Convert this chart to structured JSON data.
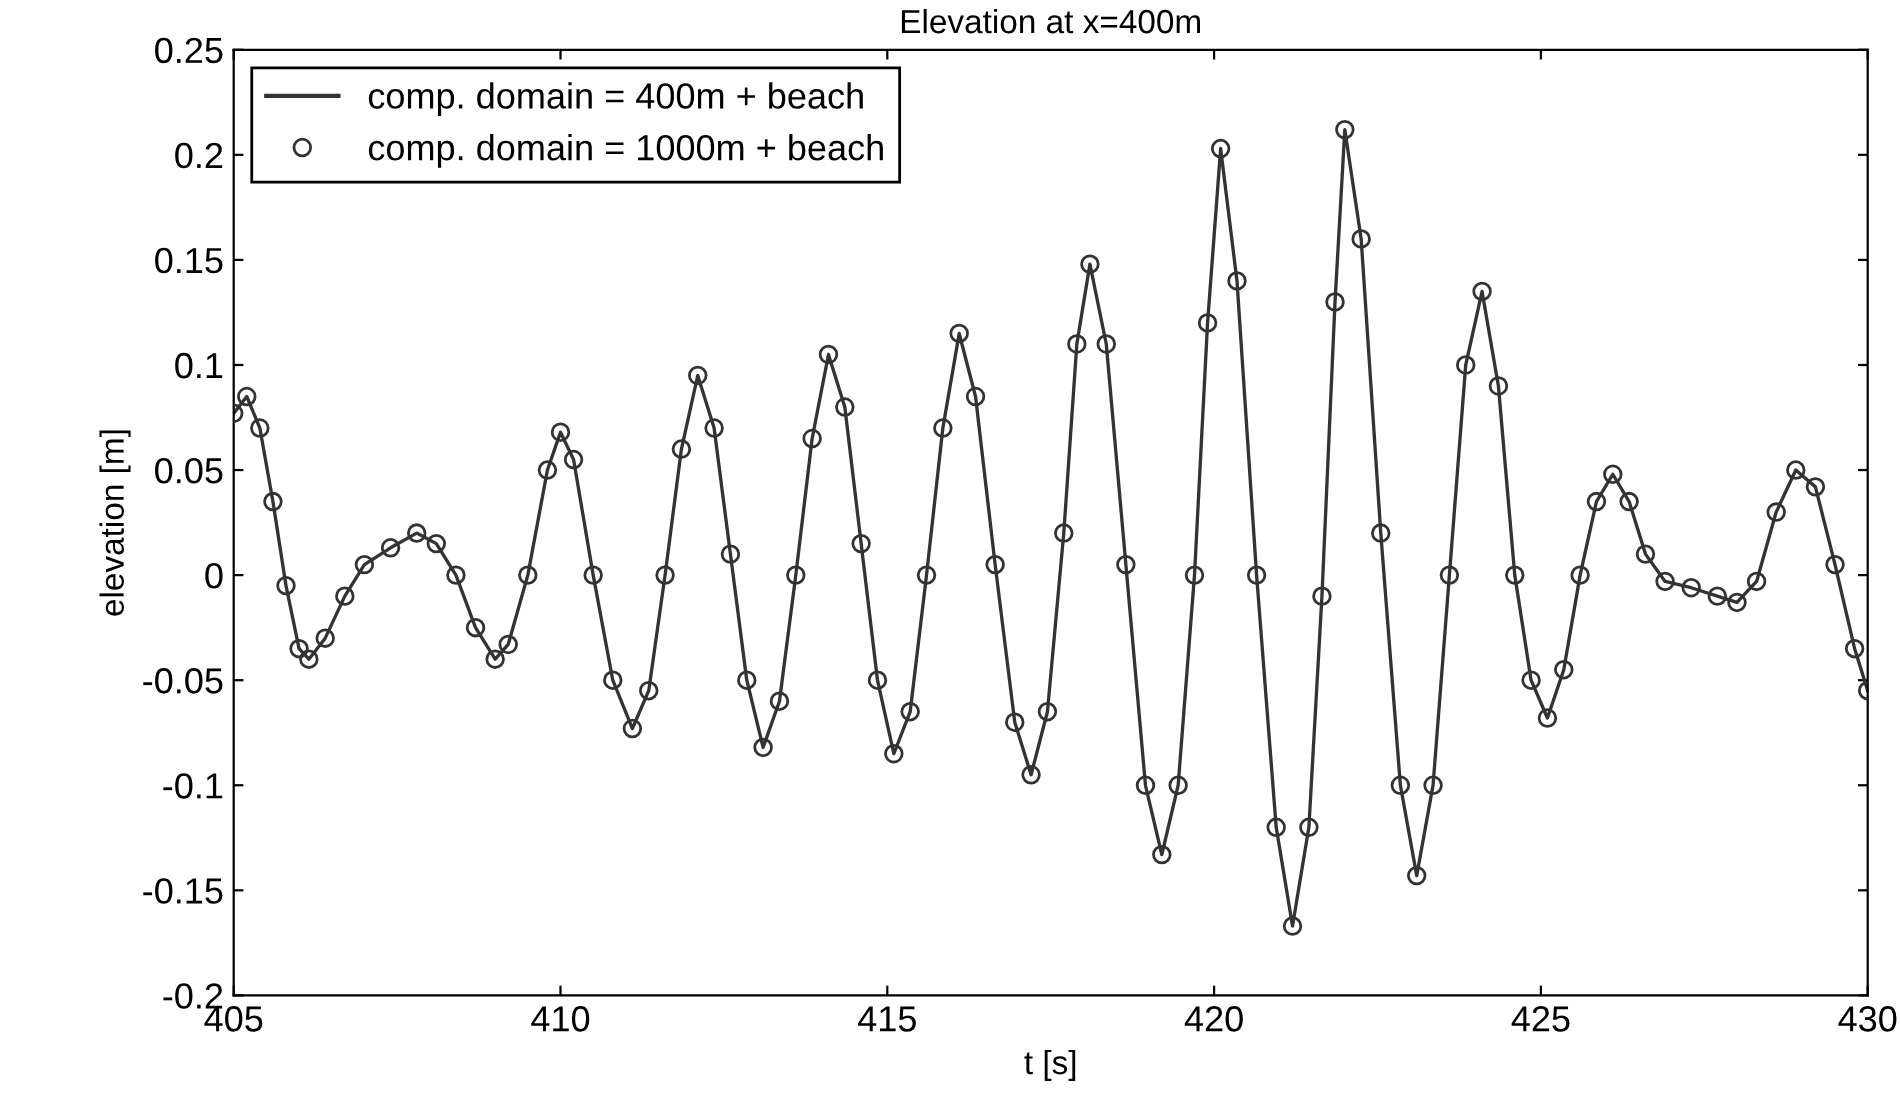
{
  "chart_data": {
    "type": "line",
    "title": "Elevation at x=400m",
    "xlabel": "t [s]",
    "ylabel": "elevation [m]",
    "xlim": [
      405,
      430
    ],
    "xticks": [
      405,
      410,
      415,
      420,
      425,
      430
    ],
    "ylim": [
      -0.2,
      0.25
    ],
    "yticks": [
      -0.2,
      -0.15,
      -0.1,
      -0.05,
      0,
      0.05,
      0.1,
      0.15,
      0.2,
      0.25
    ],
    "grid": false,
    "legend": "top left",
    "x": [
      405.0,
      405.2,
      405.4,
      405.6,
      405.8,
      406.0,
      406.15,
      406.4,
      406.7,
      407.0,
      407.4,
      407.8,
      408.1,
      408.4,
      408.7,
      409.0,
      409.2,
      409.5,
      409.8,
      410.0,
      410.2,
      410.5,
      410.8,
      411.1,
      411.35,
      411.6,
      411.85,
      412.1,
      412.35,
      412.6,
      412.85,
      413.1,
      413.35,
      413.6,
      413.85,
      414.1,
      414.35,
      414.6,
      414.85,
      415.1,
      415.35,
      415.6,
      415.85,
      416.1,
      416.35,
      416.65,
      416.95,
      417.2,
      417.45,
      417.7,
      417.9,
      418.1,
      418.35,
      418.65,
      418.95,
      419.2,
      419.45,
      419.7,
      419.9,
      420.1,
      420.35,
      420.65,
      420.95,
      421.2,
      421.45,
      421.65,
      421.85,
      422.0,
      422.25,
      422.55,
      422.85,
      423.1,
      423.35,
      423.6,
      423.85,
      424.1,
      424.35,
      424.6,
      424.85,
      425.1,
      425.35,
      425.6,
      425.85,
      426.1,
      426.35,
      426.6,
      426.9,
      427.3,
      427.7,
      428.0,
      428.3,
      428.6,
      428.9,
      429.2,
      429.5,
      429.8,
      430.0
    ],
    "series": [
      {
        "name": "comp. domain = 400m + beach",
        "color": "#333333",
        "marker": "none",
        "line_style": "solid",
        "values": [
          0.077,
          0.085,
          0.07,
          0.035,
          -0.005,
          -0.035,
          -0.04,
          -0.03,
          -0.01,
          0.005,
          0.013,
          0.02,
          0.015,
          0.0,
          -0.025,
          -0.04,
          -0.033,
          0.0,
          0.05,
          0.068,
          0.055,
          0.0,
          -0.05,
          -0.073,
          -0.055,
          0.0,
          0.06,
          0.095,
          0.07,
          0.01,
          -0.05,
          -0.082,
          -0.06,
          0.0,
          0.065,
          0.105,
          0.08,
          0.015,
          -0.05,
          -0.085,
          -0.065,
          0.0,
          0.07,
          0.115,
          0.085,
          0.005,
          -0.07,
          -0.095,
          -0.065,
          0.02,
          0.11,
          0.148,
          0.11,
          0.005,
          -0.1,
          -0.133,
          -0.1,
          0.0,
          0.12,
          0.203,
          0.14,
          0.0,
          -0.12,
          -0.167,
          -0.12,
          -0.01,
          0.13,
          0.212,
          0.16,
          0.02,
          -0.1,
          -0.143,
          -0.1,
          0.0,
          0.1,
          0.135,
          0.09,
          0.0,
          -0.05,
          -0.068,
          -0.045,
          0.0,
          0.035,
          0.048,
          0.035,
          0.01,
          -0.003,
          -0.006,
          -0.01,
          -0.013,
          -0.003,
          0.03,
          0.05,
          0.042,
          0.005,
          -0.035,
          -0.055
        ]
      },
      {
        "name": "comp. domain = 1000m + beach",
        "type": "scatter",
        "color": "#333333",
        "marker": "circle",
        "values": [
          0.077,
          0.085,
          0.07,
          0.035,
          -0.005,
          -0.035,
          -0.04,
          -0.03,
          -0.01,
          0.005,
          0.013,
          0.02,
          0.015,
          0.0,
          -0.025,
          -0.04,
          -0.033,
          0.0,
          0.05,
          0.068,
          0.055,
          0.0,
          -0.05,
          -0.073,
          -0.055,
          0.0,
          0.06,
          0.095,
          0.07,
          0.01,
          -0.05,
          -0.082,
          -0.06,
          0.0,
          0.065,
          0.105,
          0.08,
          0.015,
          -0.05,
          -0.085,
          -0.065,
          0.0,
          0.07,
          0.115,
          0.085,
          0.005,
          -0.07,
          -0.095,
          -0.065,
          0.02,
          0.11,
          0.148,
          0.11,
          0.005,
          -0.1,
          -0.133,
          -0.1,
          0.0,
          0.12,
          0.203,
          0.14,
          0.0,
          -0.12,
          -0.167,
          -0.12,
          -0.01,
          0.13,
          0.212,
          0.16,
          0.02,
          -0.1,
          -0.143,
          -0.1,
          0.0,
          0.1,
          0.135,
          0.09,
          0.0,
          -0.05,
          -0.068,
          -0.045,
          0.0,
          0.035,
          0.048,
          0.035,
          0.01,
          -0.003,
          -0.006,
          -0.01,
          -0.013,
          -0.003,
          0.03,
          0.05,
          0.042,
          0.005,
          -0.035,
          -0.055
        ]
      }
    ]
  }
}
